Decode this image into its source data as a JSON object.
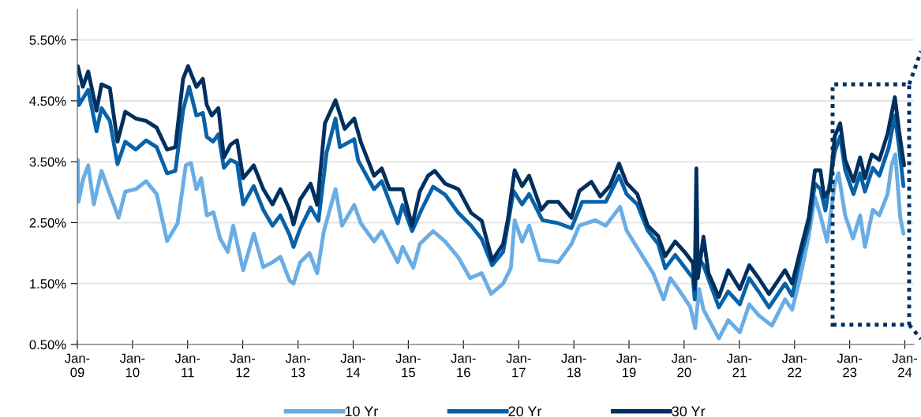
{
  "chart_data": {
    "type": "line",
    "xlim": [
      "2009-01-01",
      "2024-03-01"
    ],
    "ylim": [
      0.5,
      6.0
    ],
    "xticks": [
      {
        "value": "2009-01-01",
        "label": "Jan-\n09"
      },
      {
        "value": "2010-01-01",
        "label": "Jan-\n10"
      },
      {
        "value": "2011-01-01",
        "label": "Jan-\n11"
      },
      {
        "value": "2012-01-01",
        "label": "Jan-\n12"
      },
      {
        "value": "2013-01-01",
        "label": "Jan-\n13"
      },
      {
        "value": "2014-01-01",
        "label": "Jan-\n14"
      },
      {
        "value": "2015-01-01",
        "label": "Jan-\n15"
      },
      {
        "value": "2016-01-01",
        "label": "Jan-\n16"
      },
      {
        "value": "2017-01-01",
        "label": "Jan-\n17"
      },
      {
        "value": "2018-01-01",
        "label": "Jan-\n18"
      },
      {
        "value": "2019-01-01",
        "label": "Jan-\n19"
      },
      {
        "value": "2020-01-01",
        "label": "Jan-\n20"
      },
      {
        "value": "2021-01-01",
        "label": "Jan-\n21"
      },
      {
        "value": "2022-01-01",
        "label": "Jan-\n22"
      },
      {
        "value": "2023-01-01",
        "label": "Jan-\n23"
      },
      {
        "value": "2024-01-01",
        "label": "Jan-\n24"
      }
    ],
    "yticks": [
      {
        "value": 0.5,
        "label": "0.50%"
      },
      {
        "value": 1.5,
        "label": "1.50%"
      },
      {
        "value": 2.5,
        "label": "2.50%"
      },
      {
        "value": 3.5,
        "label": "3.50%"
      },
      {
        "value": 4.5,
        "label": "4.50%"
      },
      {
        "value": 5.5,
        "label": "5.50%"
      }
    ],
    "grid": "y",
    "legend": "bottom",
    "marker": "none",
    "line_style": "solid",
    "series": [
      {
        "name": "10 Yr",
        "color": "#6aade4",
        "x": [
          "2009-01-04",
          "2009-01-08",
          "2009-02-10",
          "2009-03-14",
          "2009-04-20",
          "2009-06-10",
          "2009-08-04",
          "2009-10-01",
          "2009-11-14",
          "2010-01-23",
          "2010-04-01",
          "2010-06-10",
          "2010-08-18",
          "2010-10-27",
          "2010-12-20",
          "2011-01-23",
          "2011-02-28",
          "2011-04-01",
          "2011-05-08",
          "2011-06-21",
          "2011-08-04",
          "2011-09-24",
          "2011-10-30",
          "2012-01-04",
          "2012-03-14",
          "2012-05-16",
          "2012-07-16",
          "2012-09-06",
          "2012-11-06",
          "2012-12-02",
          "2013-01-15",
          "2013-03-18",
          "2013-05-08",
          "2013-06-21",
          "2013-09-06",
          "2013-10-19",
          "2014-01-08",
          "2014-02-21",
          "2014-05-19",
          "2014-07-09",
          "2014-10-23",
          "2014-11-24",
          "2015-02-03",
          "2015-03-18",
          "2015-06-14",
          "2015-09-02",
          "2015-11-28",
          "2016-02-14",
          "2016-05-01",
          "2016-07-02",
          "2016-09-20",
          "2016-11-10",
          "2016-12-05",
          "2017-01-23",
          "2017-03-11",
          "2017-05-19",
          "2017-09-20",
          "2017-12-16",
          "2018-02-06",
          "2018-05-23",
          "2018-07-31",
          "2018-11-03",
          "2018-12-16",
          "2019-03-14",
          "2019-06-10",
          "2019-08-18",
          "2019-10-01",
          "2019-11-24",
          "2020-02-10",
          "2020-03-14",
          "2020-04-09",
          "2020-05-08",
          "2020-08-18",
          "2020-10-19",
          "2021-01-04",
          "2021-03-07",
          "2021-05-08",
          "2021-08-04",
          "2021-10-30",
          "2021-12-16",
          "2022-02-10",
          "2022-04-05",
          "2022-05-16",
          "2022-06-21",
          "2022-08-04",
          "2022-09-24",
          "2022-10-19",
          "2022-12-02",
          "2023-01-23",
          "2023-03-11",
          "2023-04-12",
          "2023-06-03",
          "2023-07-16",
          "2023-09-09",
          "2023-10-05",
          "2023-10-30",
          "2023-12-02",
          "2023-12-23"
        ],
        "values": [
          3.53,
          2.84,
          3.23,
          3.44,
          2.8,
          3.35,
          2.97,
          2.58,
          3.01,
          3.05,
          3.18,
          2.97,
          2.2,
          2.49,
          3.44,
          3.48,
          3.05,
          3.23,
          2.62,
          2.67,
          2.24,
          2.02,
          2.45,
          1.72,
          2.32,
          1.77,
          1.85,
          1.94,
          1.55,
          1.5,
          1.85,
          2.0,
          1.67,
          2.36,
          3.05,
          2.45,
          2.79,
          2.49,
          2.19,
          2.36,
          1.85,
          2.1,
          1.76,
          2.15,
          2.36,
          2.19,
          1.93,
          1.59,
          1.67,
          1.33,
          1.5,
          1.76,
          2.54,
          2.19,
          2.45,
          1.89,
          1.85,
          2.15,
          2.45,
          2.54,
          2.45,
          2.76,
          2.37,
          2.02,
          1.67,
          1.24,
          1.59,
          1.41,
          1.12,
          0.77,
          1.41,
          1.07,
          0.6,
          0.9,
          0.7,
          1.16,
          0.98,
          0.81,
          1.24,
          1.07,
          1.63,
          2.28,
          2.92,
          2.62,
          2.19,
          3.14,
          3.31,
          2.62,
          2.24,
          2.62,
          2.1,
          2.71,
          2.62,
          2.97,
          3.44,
          3.62,
          2.58,
          2.32
        ]
      },
      {
        "name": "20 Yr",
        "color": "#0862a8",
        "x": [
          "2009-01-04",
          "2009-01-11",
          "2009-03-14",
          "2009-05-08",
          "2009-06-10",
          "2009-08-04",
          "2009-09-24",
          "2009-11-14",
          "2010-01-23",
          "2010-04-01",
          "2010-06-10",
          "2010-08-18",
          "2010-10-12",
          "2010-12-02",
          "2011-01-11",
          "2011-02-28",
          "2011-04-12",
          "2011-05-08",
          "2011-06-18",
          "2011-07-24",
          "2011-08-29",
          "2011-10-12",
          "2011-11-24",
          "2012-01-04",
          "2012-03-14",
          "2012-05-16",
          "2012-07-16",
          "2012-09-06",
          "2012-11-06",
          "2012-12-02",
          "2013-01-15",
          "2013-03-25",
          "2013-05-16",
          "2013-07-09",
          "2013-09-06",
          "2013-10-05",
          "2014-01-08",
          "2014-02-03",
          "2014-05-19",
          "2014-07-09",
          "2014-10-23",
          "2014-11-24",
          "2015-01-26",
          "2015-03-29",
          "2015-06-14",
          "2015-09-02",
          "2015-11-28",
          "2016-02-21",
          "2016-05-01",
          "2016-07-09",
          "2016-09-20",
          "2016-11-28",
          "2017-01-23",
          "2017-03-11",
          "2017-06-07",
          "2017-09-20",
          "2017-12-16",
          "2018-02-25",
          "2018-05-05",
          "2018-07-31",
          "2018-10-27",
          "2018-12-16",
          "2019-02-25",
          "2019-05-05",
          "2019-07-13",
          "2019-08-29",
          "2019-11-03",
          "2020-02-28",
          "2020-03-11",
          "2020-03-25",
          "2020-05-08",
          "2020-08-18",
          "2020-10-19",
          "2021-01-04",
          "2021-03-07",
          "2021-05-08",
          "2021-07-16",
          "2021-10-30",
          "2021-12-16",
          "2022-02-10",
          "2022-04-05",
          "2022-05-16",
          "2022-06-21",
          "2022-07-24",
          "2022-09-24",
          "2022-10-30",
          "2022-12-02",
          "2023-01-26",
          "2023-03-11",
          "2023-04-12",
          "2023-06-03",
          "2023-07-16",
          "2023-09-17",
          "2023-10-27",
          "2023-11-24",
          "2023-12-23"
        ],
        "values": [
          4.73,
          4.43,
          4.68,
          4.0,
          4.38,
          4.17,
          3.46,
          3.83,
          3.7,
          3.85,
          3.74,
          3.31,
          3.35,
          4.34,
          4.73,
          4.26,
          4.3,
          3.91,
          3.83,
          3.95,
          3.4,
          3.53,
          3.48,
          2.8,
          3.1,
          2.71,
          2.45,
          2.62,
          2.3,
          2.1,
          2.4,
          2.75,
          2.53,
          3.65,
          4.21,
          3.74,
          3.87,
          3.52,
          3.05,
          3.18,
          2.49,
          2.79,
          2.36,
          2.71,
          3.09,
          2.96,
          2.66,
          2.45,
          2.23,
          1.8,
          2.02,
          3.02,
          2.8,
          2.97,
          2.54,
          2.49,
          2.41,
          2.84,
          2.84,
          2.84,
          3.27,
          2.97,
          2.8,
          2.37,
          2.15,
          1.75,
          1.97,
          1.59,
          1.24,
          1.97,
          1.8,
          1.11,
          1.37,
          1.16,
          1.59,
          1.37,
          1.11,
          1.5,
          1.3,
          1.93,
          2.45,
          3.14,
          3.05,
          2.7,
          3.66,
          3.92,
          3.36,
          2.97,
          3.31,
          3.01,
          3.4,
          3.27,
          3.74,
          4.26,
          3.74,
          3.1
        ]
      },
      {
        "name": "30 Yr",
        "color": "#00305f",
        "x": [
          "2009-01-04",
          "2009-02-06",
          "2009-03-14",
          "2009-05-08",
          "2009-06-10",
          "2009-08-04",
          "2009-09-24",
          "2009-11-14",
          "2010-01-23",
          "2010-04-01",
          "2010-06-10",
          "2010-08-18",
          "2010-10-12",
          "2010-12-02",
          "2011-01-04",
          "2011-02-28",
          "2011-04-12",
          "2011-05-08",
          "2011-06-10",
          "2011-07-24",
          "2011-08-29",
          "2011-10-12",
          "2011-11-24",
          "2012-01-04",
          "2012-03-14",
          "2012-05-16",
          "2012-07-16",
          "2012-09-06",
          "2012-11-06",
          "2012-12-02",
          "2013-01-15",
          "2013-03-25",
          "2013-05-08",
          "2013-06-28",
          "2013-09-06",
          "2013-11-06",
          "2014-01-08",
          "2014-02-21",
          "2014-05-19",
          "2014-07-09",
          "2014-08-29",
          "2014-11-24",
          "2015-01-26",
          "2015-03-18",
          "2015-05-12",
          "2015-06-25",
          "2015-09-02",
          "2015-11-28",
          "2016-02-21",
          "2016-05-01",
          "2016-07-09",
          "2016-09-20",
          "2016-10-23",
          "2016-12-05",
          "2017-01-23",
          "2017-03-11",
          "2017-05-30",
          "2017-07-13",
          "2017-09-20",
          "2017-12-16",
          "2018-02-06",
          "2018-04-27",
          "2018-06-25",
          "2018-08-26",
          "2018-10-27",
          "2018-12-16",
          "2019-02-25",
          "2019-05-05",
          "2019-07-13",
          "2019-08-29",
          "2019-11-03",
          "2020-01-04",
          "2020-02-28",
          "2020-03-11",
          "2020-03-22",
          "2020-04-01",
          "2020-05-08",
          "2020-06-10",
          "2020-08-18",
          "2020-10-19",
          "2021-01-04",
          "2021-03-07",
          "2021-05-08",
          "2021-07-16",
          "2021-10-30",
          "2021-12-16",
          "2022-02-10",
          "2022-04-05",
          "2022-05-16",
          "2022-06-21",
          "2022-07-16",
          "2022-08-22",
          "2022-09-24",
          "2022-10-30",
          "2022-12-02",
          "2023-01-26",
          "2023-03-11",
          "2023-04-12",
          "2023-05-27",
          "2023-07-16",
          "2023-09-09",
          "2023-10-27",
          "2023-11-24",
          "2023-12-27"
        ],
        "values": [
          5.07,
          4.73,
          4.98,
          4.34,
          4.77,
          4.71,
          3.83,
          4.32,
          4.21,
          4.17,
          4.06,
          3.7,
          3.74,
          4.86,
          5.07,
          4.73,
          4.86,
          4.43,
          4.26,
          4.38,
          3.57,
          3.78,
          3.85,
          3.23,
          3.44,
          3.05,
          2.8,
          3.05,
          2.71,
          2.47,
          2.88,
          3.14,
          2.79,
          4.13,
          4.51,
          4.04,
          4.21,
          3.82,
          3.27,
          3.39,
          3.05,
          3.05,
          2.45,
          3.01,
          3.27,
          3.35,
          3.14,
          3.05,
          2.66,
          2.53,
          1.88,
          2.15,
          2.58,
          3.36,
          3.1,
          3.27,
          2.71,
          2.84,
          2.84,
          2.58,
          3.02,
          3.17,
          2.93,
          3.1,
          3.47,
          3.15,
          2.97,
          2.45,
          2.28,
          1.95,
          2.19,
          2.02,
          1.84,
          1.41,
          3.39,
          1.59,
          2.27,
          1.67,
          1.28,
          1.72,
          1.41,
          1.8,
          1.59,
          1.33,
          1.72,
          1.5,
          2.06,
          2.58,
          3.36,
          3.36,
          2.92,
          3.05,
          3.92,
          4.13,
          3.53,
          3.18,
          3.57,
          3.23,
          3.62,
          3.53,
          3.96,
          4.56,
          4.0,
          3.44
        ]
      }
    ]
  }
}
